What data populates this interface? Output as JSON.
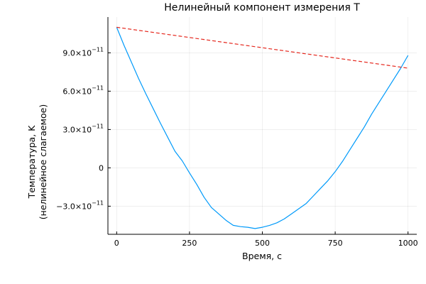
{
  "chart_data": {
    "type": "line",
    "title": "Нелинейный компонент измерения T",
    "xlabel": "Время, с",
    "ylabel_lines": [
      "Температура, K",
      "(нелинейное слагаемое)"
    ],
    "xlim": [
      -30,
      1030
    ],
    "ylim": [
      -5.2e-11,
      1.18e-10
    ],
    "xticks": [
      0,
      250,
      500,
      750,
      1000
    ],
    "xtick_labels": [
      "0",
      "250",
      "500",
      "750",
      "1000"
    ],
    "yticks": [
      -3e-11,
      0,
      3e-11,
      6e-11,
      9e-11
    ],
    "ytick_labels": [
      {
        "mantissa": "−3.0×10",
        "exp": "−11"
      },
      {
        "mantissa": "0",
        "exp": ""
      },
      {
        "mantissa": "3.0×10",
        "exp": "−11"
      },
      {
        "mantissa": "6.0×10",
        "exp": "−11"
      },
      {
        "mantissa": "9.0×10",
        "exp": "−11"
      }
    ],
    "grid": true,
    "legend": "none",
    "series": [
      {
        "style": "solid",
        "color": "#009AFA",
        "x": [
          0,
          25,
          50,
          75,
          100,
          125,
          150,
          175,
          200,
          225,
          250,
          275,
          300,
          325,
          350,
          375,
          400,
          425,
          450,
          475,
          500,
          525,
          550,
          575,
          600,
          625,
          650,
          675,
          700,
          725,
          750,
          775,
          800,
          825,
          850,
          875,
          900,
          925,
          950,
          975,
          1000
        ],
        "y": [
          1.1e-10,
          9.6e-11,
          8.3e-11,
          7e-11,
          5.8e-11,
          4.65e-11,
          3.5e-11,
          2.4e-11,
          1.3e-11,
          5.5e-12,
          -4e-12,
          -1.3e-11,
          -2.3e-11,
          -3.1e-11,
          -3.6e-11,
          -4.1e-11,
          -4.5e-11,
          -4.6e-11,
          -4.65e-11,
          -4.75e-11,
          -4.65e-11,
          -4.5e-11,
          -4.3e-11,
          -4e-11,
          -3.6e-11,
          -3.2e-11,
          -2.8e-11,
          -2.2e-11,
          -1.6e-11,
          -1e-11,
          -3e-12,
          5e-12,
          1.4e-11,
          2.3e-11,
          3.2e-11,
          4.2e-11,
          5.1e-11,
          6e-11,
          6.9e-11,
          7.8e-11,
          8.8e-11
        ]
      },
      {
        "style": "dashed",
        "color": "#E5281E",
        "x": [
          0,
          1000
        ],
        "y": [
          1.1e-10,
          7.8e-11
        ]
      }
    ]
  }
}
